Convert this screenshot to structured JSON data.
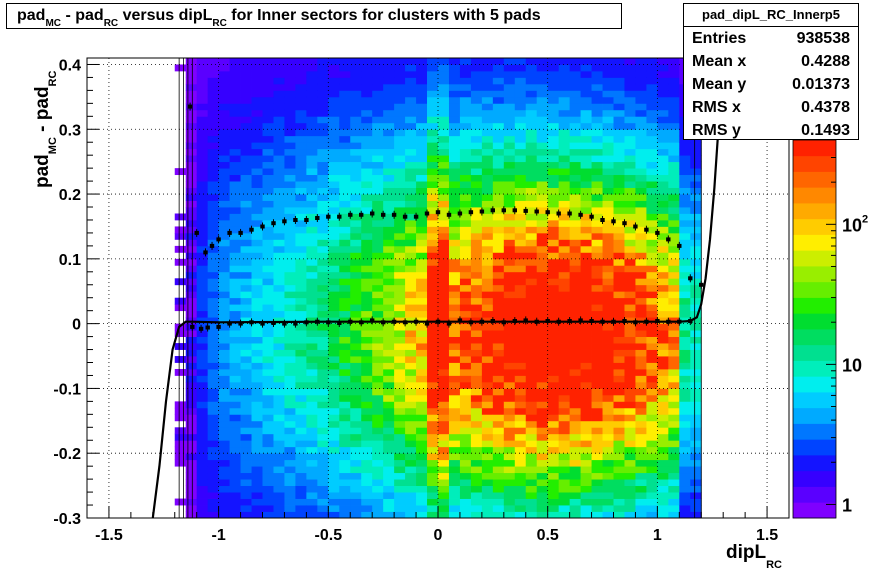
{
  "title": {
    "parts": [
      {
        "text": "pad",
        "sub": "MC"
      },
      {
        "text": " - pad",
        "sub": "RC"
      },
      {
        "text": " versus dipL",
        "sub": "RC"
      },
      {
        "text": " for Inner sectors for clusters with 5 pads",
        "sub": ""
      }
    ]
  },
  "stats": {
    "name": "pad_dipL_RC_Innerp5",
    "rows": [
      {
        "label": "Entries",
        "value": "938538"
      },
      {
        "label": "Mean x",
        "value": "0.4288"
      },
      {
        "label": "Mean y",
        "value": "0.01373"
      },
      {
        "label": "RMS x",
        "value": "0.4378"
      },
      {
        "label": "RMS y",
        "value": "0.1493"
      }
    ]
  },
  "chart_data": {
    "type": "heatmap",
    "xlabel": "dipL",
    "xlabel_sub": "RC",
    "ylabel": "pad",
    "ylabel_sub1": "MC",
    "ylabel_mid": " - pad",
    "ylabel_sub2": "RC",
    "xlim": [
      -1.6,
      1.6
    ],
    "ylim": [
      -0.3,
      0.41
    ],
    "x_ticks": [
      -1.5,
      -1,
      -0.5,
      0,
      0.5,
      1,
      1.5
    ],
    "x_tick_labels": [
      "-1.5",
      "-1",
      "-0.5",
      "0",
      "0.5",
      "1",
      "1.5"
    ],
    "y_ticks": [
      -0.3,
      -0.2,
      -0.1,
      0,
      0.1,
      0.2,
      0.3,
      0.4
    ],
    "y_tick_labels": [
      "-0.3",
      "-0.2",
      "-0.1",
      "0",
      "0.1",
      "0.2",
      "0.3",
      "0.4"
    ],
    "grid": true,
    "log_z": true,
    "z_ticks": [
      1,
      10,
      100
    ],
    "z_tick_labels": [
      "1",
      "10",
      "10^2"
    ],
    "peak": {
      "x": 0.65,
      "y": -0.02
    },
    "rms_profile": {
      "x": [
        -1.13,
        -1.1,
        -1.06,
        -1.03,
        -1.0,
        -0.95,
        -0.9,
        -0.85,
        -0.8,
        -0.75,
        -0.7,
        -0.65,
        -0.6,
        -0.55,
        -0.5,
        -0.45,
        -0.4,
        -0.35,
        -0.3,
        -0.25,
        -0.2,
        -0.15,
        -0.1,
        -0.05,
        0.0,
        0.05,
        0.1,
        0.15,
        0.2,
        0.25,
        0.3,
        0.35,
        0.4,
        0.45,
        0.5,
        0.55,
        0.6,
        0.65,
        0.7,
        0.75,
        0.8,
        0.85,
        0.9,
        0.95,
        1.0,
        1.05,
        1.1,
        1.15,
        1.2
      ],
      "y": [
        0.335,
        0.14,
        0.11,
        0.12,
        0.13,
        0.14,
        0.14,
        0.145,
        0.15,
        0.155,
        0.158,
        0.16,
        0.16,
        0.163,
        0.165,
        0.165,
        0.168,
        0.168,
        0.17,
        0.168,
        0.168,
        0.165,
        0.165,
        0.17,
        0.172,
        0.168,
        0.17,
        0.172,
        0.173,
        0.175,
        0.175,
        0.175,
        0.174,
        0.173,
        0.172,
        0.17,
        0.17,
        0.168,
        0.165,
        0.16,
        0.158,
        0.155,
        0.15,
        0.145,
        0.14,
        0.13,
        0.12,
        0.07,
        0.06
      ]
    },
    "mean_profile": {
      "x": [
        -1.12,
        -1.08,
        -1.05,
        -1.0,
        -0.95,
        -0.9,
        -0.85,
        -0.8,
        -0.75,
        -0.7,
        -0.65,
        -0.6,
        -0.55,
        -0.5,
        -0.45,
        -0.4,
        -0.35,
        -0.3,
        -0.25,
        -0.2,
        -0.15,
        -0.1,
        -0.05,
        0.0,
        0.05,
        0.1,
        0.15,
        0.2,
        0.25,
        0.3,
        0.35,
        0.4,
        0.45,
        0.5,
        0.55,
        0.6,
        0.65,
        0.7,
        0.75,
        0.8,
        0.85,
        0.9,
        0.95,
        1.0,
        1.05,
        1.1,
        1.15
      ],
      "y": [
        -0.005,
        -0.008,
        -0.006,
        -0.005,
        0.0,
        0.0,
        0.002,
        0.0,
        0.001,
        0.0,
        0.0,
        0.002,
        0.003,
        0.002,
        0.001,
        0.003,
        0.002,
        0.005,
        0.002,
        0.003,
        0.002,
        0.003,
        0.0,
        0.003,
        0.0,
        0.005,
        0.002,
        0.003,
        0.004,
        0.002,
        0.004,
        0.005,
        0.003,
        0.004,
        0.003,
        0.004,
        0.005,
        0.004,
        0.003,
        0.003,
        0.004,
        0.002,
        0.003,
        0.004,
        0.003,
        0.003,
        0.004
      ]
    },
    "fit_curve": {
      "x": [
        -1.3,
        -1.27,
        -1.24,
        -1.21,
        -1.18,
        -1.15,
        -1.12,
        -1.0,
        -0.5,
        0.0,
        0.5,
        1.0,
        1.1,
        1.15,
        1.18,
        1.2,
        1.22,
        1.24,
        1.26,
        1.28,
        1.3
      ],
      "y": [
        -0.3,
        -0.22,
        -0.12,
        -0.04,
        -0.005,
        0.003,
        0.003,
        0.002,
        0.003,
        0.003,
        0.003,
        0.003,
        0.003,
        0.004,
        0.01,
        0.03,
        0.07,
        0.13,
        0.21,
        0.31,
        0.41
      ]
    }
  }
}
